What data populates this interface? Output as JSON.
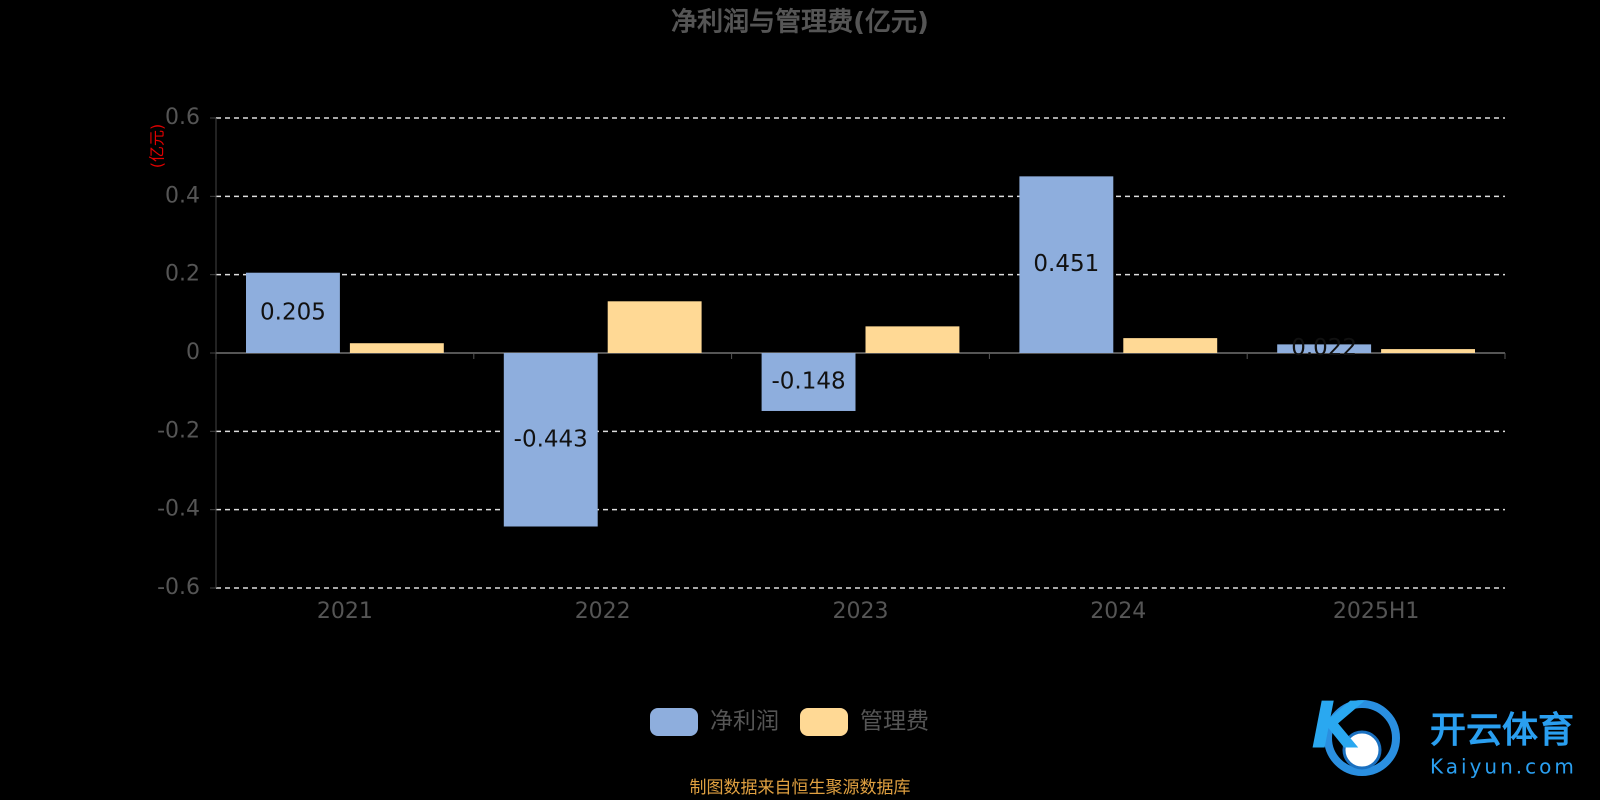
{
  "chart_data": {
    "type": "bar",
    "title": "净利润与管理费(亿元)",
    "y_unit_label": "(亿元)",
    "categories": [
      "2021",
      "2022",
      "2023",
      "2024",
      "2025H1"
    ],
    "series": [
      {
        "name": "净利润",
        "color": "#8eaedd",
        "values": [
          0.205,
          -0.443,
          -0.148,
          0.451,
          0.022
        ],
        "show_labels": true
      },
      {
        "name": "管理费",
        "color": "#ffd995",
        "values": [
          0.025,
          0.132,
          0.068,
          0.038,
          0.01
        ],
        "show_labels": false
      }
    ],
    "ylim": [
      -0.6,
      0.6
    ],
    "yticks": [
      -0.6,
      -0.4,
      -0.2,
      0,
      0.2,
      0.4,
      0.6
    ],
    "grid": true,
    "source": "制图数据来自恒生聚源数据库",
    "watermark": [
      "开云体育",
      "Kaiyun.com"
    ]
  }
}
